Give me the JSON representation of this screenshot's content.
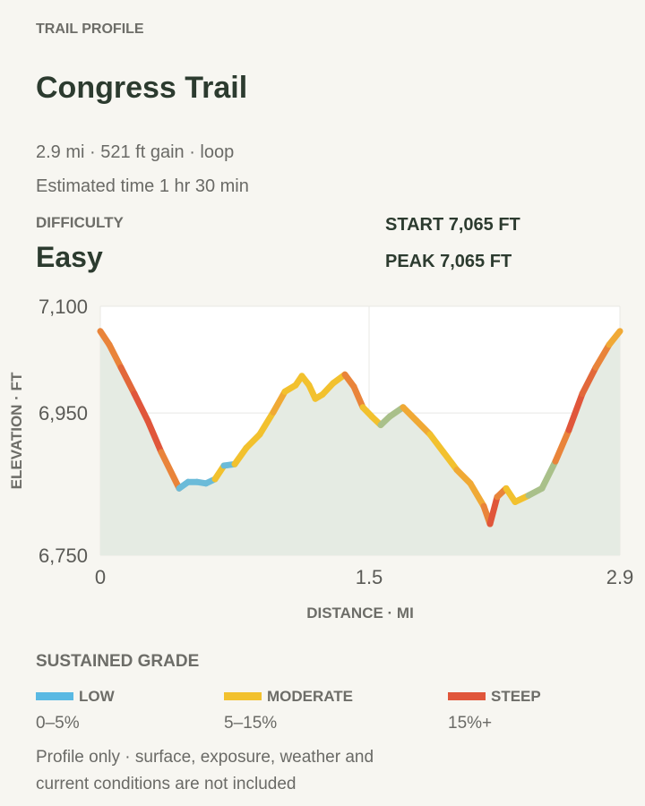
{
  "header": {
    "eyebrow": "TRAIL PROFILE",
    "title": "Congress Trail",
    "summary": "2.9 mi · 521 ft gain · loop",
    "time": "Estimated time 1 hr 30 min",
    "difficulty_label": "DIFFICULTY",
    "difficulty": "Easy",
    "start": "START 7,065 FT",
    "peak": "PEAK 7,065 FT"
  },
  "chart_data": {
    "type": "line",
    "x_label": "DISTANCE · MI",
    "y_label": "ELEVATION · FT",
    "x": [
      0,
      0.05,
      0.115,
      0.19,
      0.265,
      0.34,
      0.44,
      0.49,
      0.54,
      0.59,
      0.64,
      0.69,
      0.75,
      0.815,
      0.89,
      0.965,
      1.03,
      1.09,
      1.125,
      1.165,
      1.2,
      1.24,
      1.3,
      1.365,
      1.415,
      1.465,
      1.515,
      1.565,
      1.615,
      1.69,
      1.765,
      1.84,
      1.915,
      1.99,
      2.065,
      2.14,
      2.175,
      2.215,
      2.265,
      2.315,
      2.39,
      2.465,
      2.54,
      2.615,
      2.69,
      2.765,
      2.84,
      2.9
    ],
    "series": [
      {
        "values": [
          7065,
          7046,
          7014,
          6977,
          6939,
          6895,
          6844,
          6853,
          6853,
          6851,
          6857,
          6876,
          6878,
          6901,
          6920,
          6951,
          6980,
          6989,
          7002,
          6989,
          6970,
          6976,
          6992,
          7004,
          6987,
          6958,
          6945,
          6933,
          6945,
          6958,
          6939,
          6920,
          6895,
          6870,
          6851,
          6819,
          6794,
          6832,
          6844,
          6825,
          6834,
          6844,
          6882,
          6926,
          6977,
          7014,
          7046,
          7065
        ],
        "segment_colors": [
          "#e9843a",
          "#e9843a",
          "#e2683a",
          "#e0563b",
          "#e0563b",
          "#e9843a",
          "#6bbbd9",
          "#6bbbd9",
          "#6bbbd9",
          "#6bbbd9",
          "#f2c12e",
          "#6bbbd9",
          "#f2c12e",
          "#f2c12e",
          "#f2c12e",
          "#f0a935",
          "#f2c12e",
          "#f2c12e",
          "#f2c12e",
          "#f2c12e",
          "#f2c12e",
          "#f2c12e",
          "#f2c12e",
          "#e9843a",
          "#e9843a",
          "#f2c12e",
          "#f2c12e",
          "#a9c08a",
          "#a9c08a",
          "#f0a935",
          "#f0a935",
          "#f2c12e",
          "#f2c12e",
          "#f0a935",
          "#f0a935",
          "#e9843a",
          "#e0563b",
          "#e9843a",
          "#f2c12e",
          "#f2c12e",
          "#a9c08a",
          "#a9c08a",
          "#e9843a",
          "#e0563b",
          "#e2683a",
          "#e9843a",
          "#f0a935"
        ]
      }
    ],
    "area_color": "#e5ebe3",
    "grid": true,
    "xlim": [
      0,
      2.9
    ],
    "xticks": [
      0,
      1.5,
      2.9
    ],
    "ylim": [
      6750,
      7100
    ],
    "yticks": [
      {
        "value": 6750,
        "label": "6,750"
      },
      {
        "value": 6950,
        "label": "6,950"
      },
      {
        "value": 7100,
        "label": "7,100"
      }
    ]
  },
  "legend": {
    "title": "SUSTAINED GRADE",
    "items": [
      {
        "name": "LOW",
        "range": "0–5%",
        "color": "#5ab9e3"
      },
      {
        "name": "MODERATE",
        "range": "5–15%",
        "color": "#f2c12e"
      },
      {
        "name": "STEEP",
        "range": "15%+",
        "color": "#e0563b"
      }
    ]
  },
  "footnote": [
    "Profile only · surface, exposure, weather and",
    "current conditions are not included"
  ]
}
